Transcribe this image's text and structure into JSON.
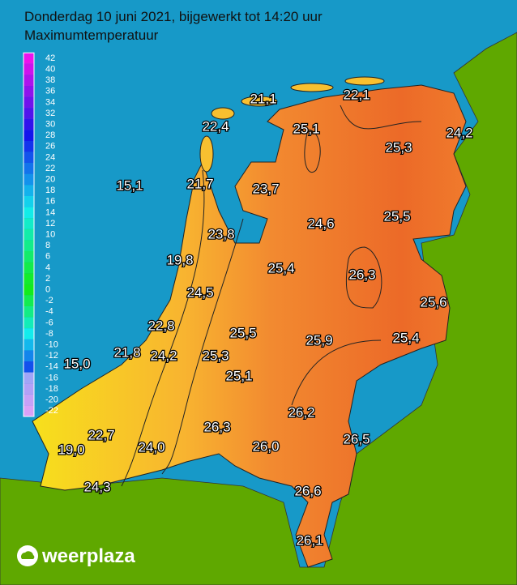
{
  "header": {
    "title": "Donderdag 10 juni 2021, bijgewerkt tot 14:20 uur",
    "subtitle": "Maximumtemperatuur"
  },
  "scale": [
    42,
    40,
    38,
    36,
    34,
    32,
    30,
    28,
    26,
    24,
    22,
    20,
    18,
    16,
    14,
    12,
    10,
    8,
    6,
    4,
    2,
    0,
    -2,
    -4,
    -6,
    -8,
    -10,
    -12,
    -14,
    -16,
    -18,
    -20,
    -22
  ],
  "stations": [
    "21,1",
    "22,1",
    "22,4",
    "25,1",
    "24,2",
    "25,3",
    "15,1",
    "21,7",
    "23,7",
    "24,6",
    "25,5",
    "23,8",
    "19,8",
    "25,4",
    "26,3",
    "24,5",
    "25,6",
    "22,8",
    "25,5",
    "25,9",
    "25,4",
    "21,8",
    "24,2",
    "25,3",
    "15,0",
    "25,1",
    "26,2",
    "22,7",
    "26,3",
    "24,0",
    "26,5",
    "26,0",
    "19,0",
    "24,3",
    "26,6",
    "26,1"
  ],
  "logo": "weerplaza"
}
